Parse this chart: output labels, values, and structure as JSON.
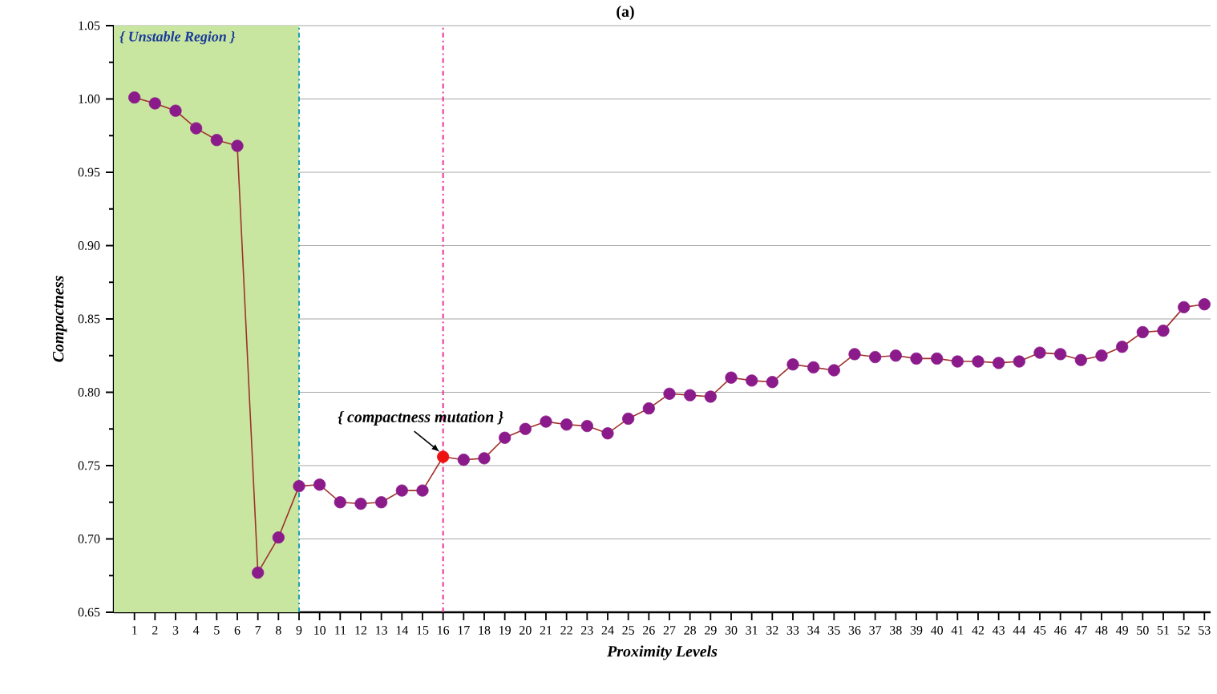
{
  "chart_data": {
    "type": "line",
    "title": "(a)",
    "xlabel": "Proximity Levels",
    "ylabel": "Compactness",
    "x": [
      1,
      2,
      3,
      4,
      5,
      6,
      7,
      8,
      9,
      10,
      11,
      12,
      13,
      14,
      15,
      16,
      17,
      18,
      19,
      20,
      21,
      22,
      23,
      24,
      25,
      26,
      27,
      28,
      29,
      30,
      31,
      32,
      33,
      34,
      35,
      36,
      37,
      38,
      39,
      40,
      41,
      42,
      43,
      44,
      45,
      46,
      47,
      48,
      49,
      50,
      51,
      52,
      53
    ],
    "series": [
      {
        "color": "#a0302a",
        "colors": [
          "#8b1a8b",
          "#8b1a8b",
          "#8b1a8b",
          "#8b1a8b",
          "#8b1a8b",
          "#8b1a8b",
          "#8b1a8b",
          "#8b1a8b",
          "#8b1a8b",
          "#8b1a8b",
          "#8b1a8b",
          "#8b1a8b",
          "#8b1a8b",
          "#8b1a8b",
          "#8b1a8b",
          "#ee1111",
          "#8b1a8b",
          "#8b1a8b",
          "#8b1a8b",
          "#8b1a8b",
          "#8b1a8b",
          "#8b1a8b",
          "#8b1a8b",
          "#8b1a8b",
          "#8b1a8b",
          "#8b1a8b",
          "#8b1a8b",
          "#8b1a8b",
          "#8b1a8b",
          "#8b1a8b",
          "#8b1a8b",
          "#8b1a8b",
          "#8b1a8b",
          "#8b1a8b",
          "#8b1a8b",
          "#8b1a8b",
          "#8b1a8b",
          "#8b1a8b",
          "#8b1a8b",
          "#8b1a8b",
          "#8b1a8b",
          "#8b1a8b",
          "#8b1a8b",
          "#8b1a8b",
          "#8b1a8b",
          "#8b1a8b",
          "#8b1a8b",
          "#8b1a8b",
          "#8b1a8b",
          "#8b1a8b",
          "#8b1a8b",
          "#8b1a8b",
          "#8b1a8b"
        ],
        "values": [
          1.001,
          0.997,
          0.992,
          0.98,
          0.972,
          0.968,
          0.677,
          0.701,
          0.736,
          0.737,
          0.725,
          0.724,
          0.725,
          0.733,
          0.733,
          0.756,
          0.754,
          0.755,
          0.769,
          0.775,
          0.78,
          0.778,
          0.777,
          0.772,
          0.782,
          0.789,
          0.799,
          0.798,
          0.797,
          0.81,
          0.808,
          0.807,
          0.819,
          0.817,
          0.815,
          0.826,
          0.824,
          0.825,
          0.823,
          0.823,
          0.821,
          0.821,
          0.82,
          0.821,
          0.827,
          0.826,
          0.822,
          0.825,
          0.831,
          0.841,
          0.842,
          0.858,
          0.86
        ]
      }
    ],
    "xlim": [
      0,
      53.3
    ],
    "xticks": [
      1,
      2,
      3,
      4,
      5,
      6,
      7,
      8,
      9,
      10,
      11,
      12,
      13,
      14,
      15,
      16,
      17,
      18,
      19,
      20,
      21,
      22,
      23,
      24,
      25,
      26,
      27,
      28,
      29,
      30,
      31,
      32,
      33,
      34,
      35,
      36,
      37,
      38,
      39,
      40,
      41,
      42,
      43,
      44,
      45,
      46,
      47,
      48,
      49,
      50,
      51,
      52,
      53
    ],
    "ylim": [
      0.65,
      1.05
    ],
    "yticks": [
      0.65,
      {
        "value": 0.7,
        "label": "0.70"
      },
      0.75,
      {
        "value": 0.8,
        "label": "0.80"
      },
      0.85,
      {
        "value": 0.9,
        "label": "0.90"
      },
      0.95,
      {
        "value": 1,
        "label": "1.00"
      },
      1.05
    ],
    "grid": "y",
    "marker": "circle",
    "line_style": "solid",
    "bands": [
      {
        "axis": "x",
        "from": 0,
        "to": 9,
        "label": "{ Unstable Region }",
        "color": "#c8e6a0"
      }
    ],
    "ref_lines": [
      {
        "axis": "x",
        "value": 9,
        "color": "#1aa0b0",
        "line_style": "dashed"
      },
      {
        "axis": "x",
        "value": 16,
        "color": "#ee3399",
        "line_style": "dashed"
      }
    ],
    "annotations": [
      {
        "text": "{ compactness mutation }",
        "x": 16,
        "y": 0.756
      }
    ]
  }
}
